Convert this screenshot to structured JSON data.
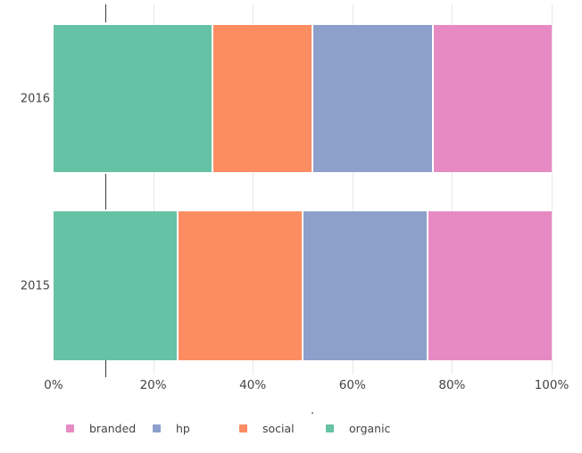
{
  "figure": {
    "background": "#ffffff",
    "text_color": "#444444",
    "gridline_color": "#e7e7e7",
    "axis_line_color": "#3a3a3a"
  },
  "chart_data": {
    "type": "bar",
    "orientation": "horizontal",
    "stacked": true,
    "units": "percent",
    "title": "",
    "x_axis": {
      "title": ".",
      "ticks": [
        "0%",
        "20%",
        "40%",
        "60%",
        "80%",
        "100%"
      ],
      "range": [
        0,
        100
      ],
      "grid": true
    },
    "y_axis": {
      "categories": [
        "2016",
        "2015"
      ]
    },
    "series": [
      {
        "name": "organic",
        "color": "#66c2a5",
        "values": [
          32,
          25
        ]
      },
      {
        "name": "social",
        "color": "#fc8d62",
        "values": [
          20,
          25
        ]
      },
      {
        "name": "hp",
        "color": "#8da0cb",
        "values": [
          24,
          25
        ]
      },
      {
        "name": "branded",
        "color": "#e78ac3",
        "values": [
          24,
          25
        ]
      }
    ],
    "legend": {
      "position": "bottom",
      "entries": [
        {
          "label": "branded",
          "color": "#e78ac3"
        },
        {
          "label": "hp",
          "color": "#8da0cb"
        },
        {
          "label": "social",
          "color": "#fc8d62"
        },
        {
          "label": "organic",
          "color": "#66c2a5"
        }
      ]
    }
  }
}
